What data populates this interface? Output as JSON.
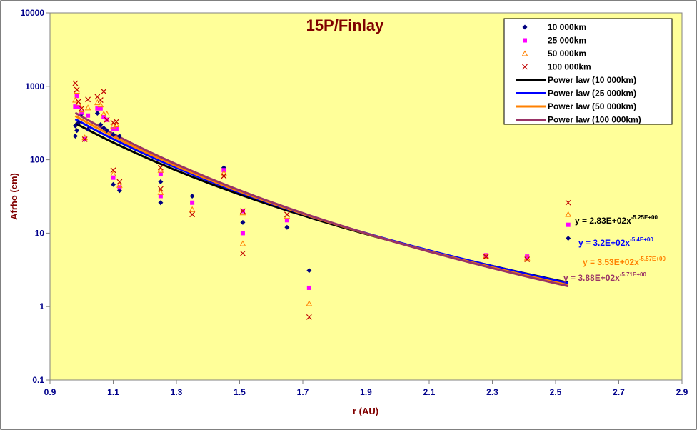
{
  "chart_data": {
    "type": "scatter",
    "title": "15P/Finlay",
    "xlabel": "r (AU)",
    "ylabel": "Afrho (cm)",
    "xlim": [
      0.9,
      2.9
    ],
    "ylim": [
      0.1,
      10000
    ],
    "yscale": "log",
    "xticks": [
      "0.9",
      "1.1",
      "1.3",
      "1.5",
      "1.7",
      "1.9",
      "2.1",
      "2.3",
      "2.5",
      "2.7",
      "2.9"
    ],
    "yticks": [
      "0.1",
      "1",
      "10",
      "100",
      "1000",
      "10000"
    ],
    "grid": false,
    "legend_position": "top-right",
    "colors": {
      "plot_bg": "#ffff99",
      "frame": "#808080",
      "s10": "#000080",
      "s25": "#ff00ff",
      "s50": "#ff8000",
      "s100": "#c00000",
      "f10": "#000000",
      "f25": "#0000ff",
      "f50": "#ff8000",
      "f100": "#993366"
    },
    "series": [
      {
        "name": "10 000km",
        "marker": "diamond",
        "points": [
          [
            0.98,
            210
          ],
          [
            0.98,
            290
          ],
          [
            0.985,
            250
          ],
          [
            0.99,
            320
          ],
          [
            1.0,
            420
          ],
          [
            1.01,
            190
          ],
          [
            1.02,
            260
          ],
          [
            1.05,
            430
          ],
          [
            1.06,
            300
          ],
          [
            1.07,
            270
          ],
          [
            1.08,
            250
          ],
          [
            1.1,
            46
          ],
          [
            1.1,
            220
          ],
          [
            1.12,
            38
          ],
          [
            1.12,
            210
          ],
          [
            1.25,
            26
          ],
          [
            1.25,
            50
          ],
          [
            1.35,
            32
          ],
          [
            1.45,
            78
          ],
          [
            1.51,
            14
          ],
          [
            1.65,
            12
          ],
          [
            1.72,
            3.1
          ],
          [
            2.28,
            5.0
          ],
          [
            2.41,
            4.7
          ],
          [
            2.54,
            8.5
          ]
        ]
      },
      {
        "name": "25 000km",
        "marker": "square",
        "points": [
          [
            0.98,
            530
          ],
          [
            0.985,
            740
          ],
          [
            0.99,
            520
          ],
          [
            1.0,
            440
          ],
          [
            1.01,
            190
          ],
          [
            1.02,
            400
          ],
          [
            1.05,
            500
          ],
          [
            1.06,
            500
          ],
          [
            1.07,
            380
          ],
          [
            1.08,
            350
          ],
          [
            1.1,
            57
          ],
          [
            1.1,
            260
          ],
          [
            1.11,
            260
          ],
          [
            1.12,
            42
          ],
          [
            1.25,
            32
          ],
          [
            1.25,
            64
          ],
          [
            1.35,
            26
          ],
          [
            1.45,
            72
          ],
          [
            1.51,
            10
          ],
          [
            1.51,
            20
          ],
          [
            1.65,
            15
          ],
          [
            1.72,
            1.8
          ],
          [
            2.28,
            5.0
          ],
          [
            2.41,
            4.8
          ],
          [
            2.54,
            13
          ]
        ]
      },
      {
        "name": "50 000km",
        "marker": "triangle",
        "points": [
          [
            0.98,
            650
          ],
          [
            0.985,
            860
          ],
          [
            0.99,
            580
          ],
          [
            1.0,
            480
          ],
          [
            1.01,
            200
          ],
          [
            1.02,
            510
          ],
          [
            1.05,
            600
          ],
          [
            1.06,
            560
          ],
          [
            1.07,
            420
          ],
          [
            1.08,
            420
          ],
          [
            1.1,
            64
          ],
          [
            1.1,
            290
          ],
          [
            1.11,
            300
          ],
          [
            1.12,
            45
          ],
          [
            1.25,
            36
          ],
          [
            1.25,
            72
          ],
          [
            1.35,
            21
          ],
          [
            1.45,
            66
          ],
          [
            1.51,
            7.2
          ],
          [
            1.51,
            19
          ],
          [
            1.65,
            17
          ],
          [
            1.72,
            1.1
          ],
          [
            2.28,
            4.9
          ],
          [
            2.41,
            4.6
          ],
          [
            2.54,
            18
          ]
        ]
      },
      {
        "name": "100 000km",
        "marker": "x",
        "points": [
          [
            0.98,
            1100
          ],
          [
            0.985,
            900
          ],
          [
            0.99,
            620
          ],
          [
            1.0,
            500
          ],
          [
            1.01,
            190
          ],
          [
            1.02,
            660
          ],
          [
            1.05,
            720
          ],
          [
            1.06,
            650
          ],
          [
            1.07,
            850
          ],
          [
            1.08,
            350
          ],
          [
            1.1,
            72
          ],
          [
            1.1,
            320
          ],
          [
            1.11,
            330
          ],
          [
            1.12,
            50
          ],
          [
            1.25,
            40
          ],
          [
            1.25,
            78
          ],
          [
            1.35,
            18
          ],
          [
            1.45,
            60
          ],
          [
            1.51,
            5.3
          ],
          [
            1.51,
            20
          ],
          [
            1.65,
            18
          ],
          [
            1.72,
            0.72
          ],
          [
            2.28,
            4.8
          ],
          [
            2.41,
            4.4
          ],
          [
            2.54,
            26
          ]
        ]
      }
    ],
    "fits": [
      {
        "name": "Power law (10 000km)",
        "a": 283,
        "b": -5.25,
        "label": "y = 2.83E+02x",
        "exp": "-5.25E+00"
      },
      {
        "name": "Power law (25 000km)",
        "a": 320,
        "b": -5.4,
        "label": "y = 3.2E+02x",
        "exp": "-5.4E+00"
      },
      {
        "name": "Power law (50 000km)",
        "a": 353,
        "b": -5.57,
        "label": "y = 3.53E+02x",
        "exp": "-5.57E+00"
      },
      {
        "name": "Power law (100 000km)",
        "a": 388,
        "b": -5.71,
        "label": "y = 3.88E+02x",
        "exp": "-5.71E+00"
      }
    ],
    "fit_range": [
      0.98,
      2.54
    ]
  }
}
